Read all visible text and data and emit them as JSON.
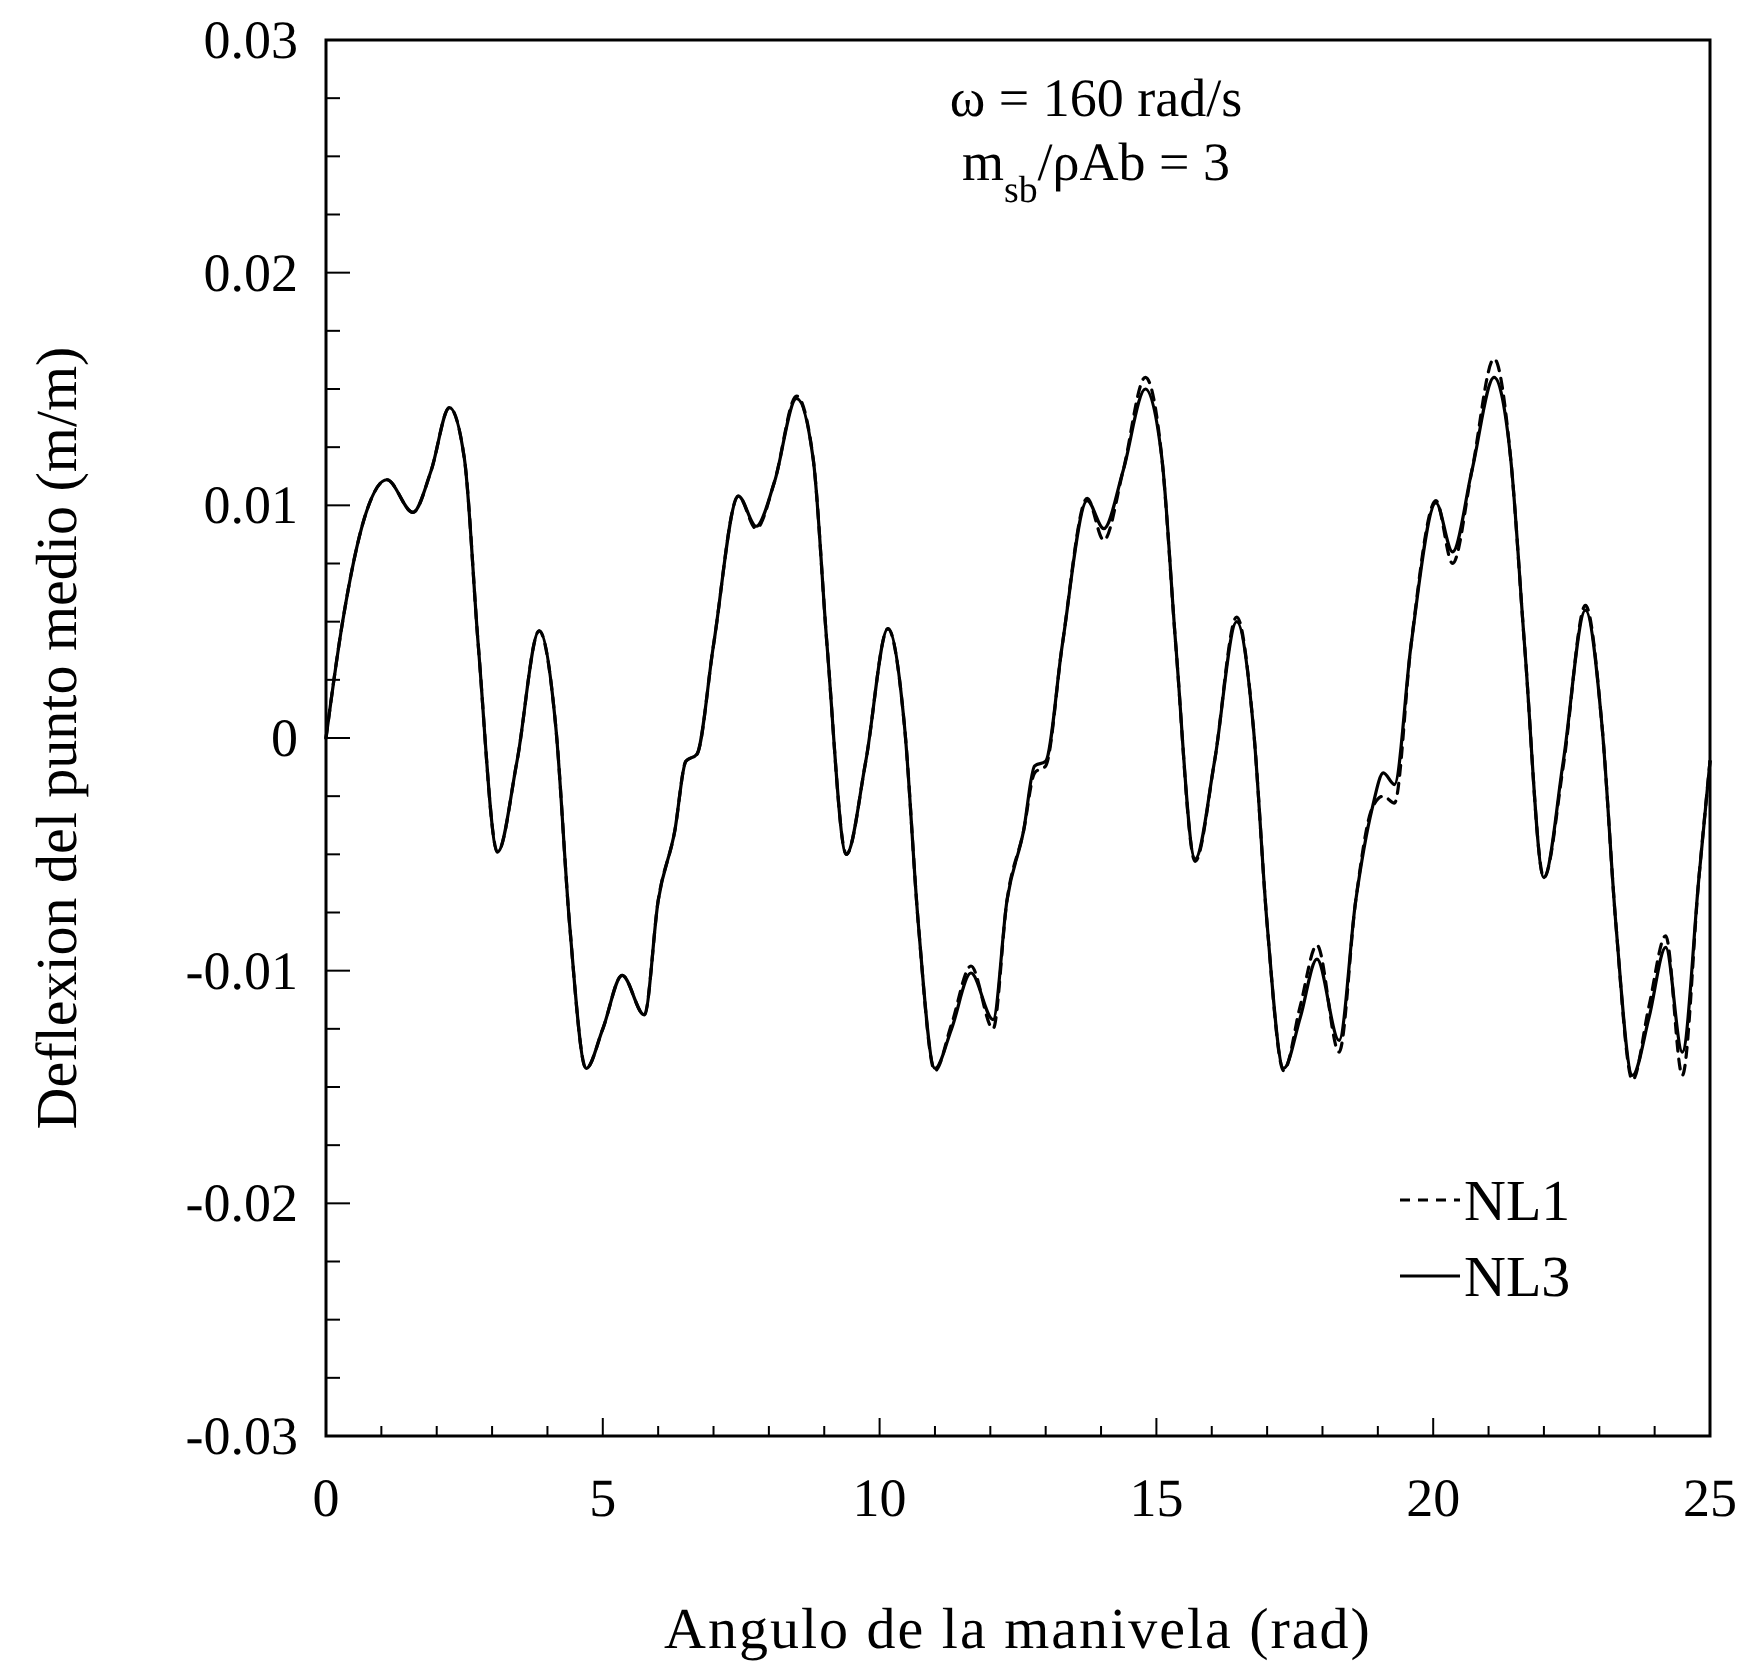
{
  "chart_data": {
    "type": "line",
    "xlabel": "Angulo de la manivela (rad)",
    "ylabel": "Deflexion del punto medio (m/m)",
    "annotations": [
      "ω = 160 rad/s",
      "m$_{sb}$/ρAb = 3"
    ],
    "xlim": [
      0,
      25
    ],
    "xticks": [
      0,
      5,
      10,
      15,
      20,
      25
    ],
    "ylim": [
      -0.03,
      0.03
    ],
    "yticks": [
      -0.03,
      -0.02,
      -0.01,
      0,
      0.01,
      0.02,
      0.03
    ],
    "grid": false,
    "legend": "bottom right",
    "series": [
      {
        "name": "NL1",
        "color": "#000000",
        "line_style": "dashed",
        "x": [
          0,
          0.3,
          0.7,
          1.1,
          1.57,
          1.9,
          2.23,
          2.5,
          2.75,
          3.1,
          3.45,
          3.85,
          4.15,
          4.4,
          4.7,
          5.0,
          5.35,
          5.75,
          6.0,
          6.3,
          6.5,
          6.7,
          7.0,
          7.45,
          7.77,
          8.1,
          8.5,
          8.8,
          9.05,
          9.4,
          9.75,
          10.15,
          10.45,
          10.7,
          11.0,
          11.3,
          11.65,
          12.05,
          12.3,
          12.6,
          12.8,
          13.0,
          13.3,
          13.75,
          14.05,
          14.4,
          14.8,
          15.1,
          15.35,
          15.7,
          16.05,
          16.45,
          16.75,
          17.0,
          17.3,
          17.6,
          17.9,
          18.3,
          18.6,
          18.9,
          19.1,
          19.3,
          19.6,
          20.05,
          20.35,
          20.7,
          21.1,
          21.4,
          21.65,
          22.0,
          22.35,
          22.75,
          23.05,
          23.3,
          23.6,
          23.9,
          24.2,
          24.5,
          24.8,
          25.0
        ],
        "values": [
          0,
          0.005,
          0.0095,
          0.0111,
          0.0097,
          0.0115,
          0.0142,
          0.012,
          0.004,
          -0.0049,
          -0.001,
          0.0046,
          0.0005,
          -0.008,
          -0.0142,
          -0.0125,
          -0.0102,
          -0.0119,
          -0.007,
          -0.004,
          -0.001,
          -0.0007,
          0.004,
          0.0104,
          0.009,
          0.011,
          0.0147,
          0.012,
          0.004,
          -0.005,
          -0.001,
          0.0047,
          0.0005,
          -0.008,
          -0.0143,
          -0.0123,
          -0.0098,
          -0.0125,
          -0.007,
          -0.004,
          -0.0015,
          -0.0012,
          0.004,
          0.0103,
          0.0085,
          0.0115,
          0.0155,
          0.012,
          0.004,
          -0.0053,
          -0.001,
          0.0052,
          0.0005,
          -0.008,
          -0.0143,
          -0.0115,
          -0.0089,
          -0.0135,
          -0.007,
          -0.003,
          -0.0025,
          -0.0028,
          0.004,
          0.0102,
          0.0075,
          0.0115,
          0.0163,
          0.012,
          0.004,
          -0.006,
          -0.0012,
          0.0057,
          0.0005,
          -0.008,
          -0.0147,
          -0.0115,
          -0.0085,
          -0.0145,
          -0.006,
          -0.001
        ]
      },
      {
        "name": "NL3",
        "color": "#000000",
        "line_style": "solid",
        "x": [
          0,
          0.3,
          0.7,
          1.1,
          1.57,
          1.9,
          2.23,
          2.5,
          2.75,
          3.1,
          3.45,
          3.85,
          4.15,
          4.4,
          4.7,
          5.0,
          5.35,
          5.75,
          6.0,
          6.3,
          6.5,
          6.7,
          7.0,
          7.45,
          7.77,
          8.1,
          8.5,
          8.8,
          9.05,
          9.4,
          9.75,
          10.15,
          10.45,
          10.7,
          11.0,
          11.3,
          11.65,
          12.05,
          12.3,
          12.6,
          12.8,
          13.0,
          13.3,
          13.75,
          14.05,
          14.4,
          14.8,
          15.1,
          15.35,
          15.7,
          16.05,
          16.45,
          16.75,
          17.0,
          17.3,
          17.6,
          17.9,
          18.3,
          18.6,
          18.9,
          19.1,
          19.3,
          19.6,
          20.05,
          20.35,
          20.7,
          21.1,
          21.4,
          21.65,
          22.0,
          22.35,
          22.75,
          23.05,
          23.3,
          23.6,
          23.9,
          24.2,
          24.5,
          24.8,
          25.0
        ],
        "values": [
          0,
          0.005,
          0.0095,
          0.0111,
          0.0097,
          0.0115,
          0.0142,
          0.012,
          0.004,
          -0.0049,
          -0.001,
          0.0046,
          0.0005,
          -0.008,
          -0.0142,
          -0.0125,
          -0.0102,
          -0.0119,
          -0.007,
          -0.004,
          -0.001,
          -0.0007,
          0.004,
          0.0104,
          0.0091,
          0.011,
          0.0146,
          0.012,
          0.004,
          -0.005,
          -0.001,
          0.0047,
          0.0005,
          -0.008,
          -0.0142,
          -0.0125,
          -0.0101,
          -0.0121,
          -0.007,
          -0.004,
          -0.0012,
          -0.001,
          0.004,
          0.0102,
          0.009,
          0.0115,
          0.015,
          0.012,
          0.004,
          -0.0052,
          -0.001,
          0.005,
          0.0005,
          -0.008,
          -0.0142,
          -0.012,
          -0.0095,
          -0.013,
          -0.007,
          -0.003,
          -0.0015,
          -0.002,
          0.004,
          0.0101,
          0.008,
          0.0115,
          0.0155,
          0.012,
          0.004,
          -0.006,
          -0.001,
          0.0055,
          0.0005,
          -0.008,
          -0.0145,
          -0.012,
          -0.009,
          -0.0135,
          -0.006,
          -0.001
        ]
      }
    ]
  }
}
